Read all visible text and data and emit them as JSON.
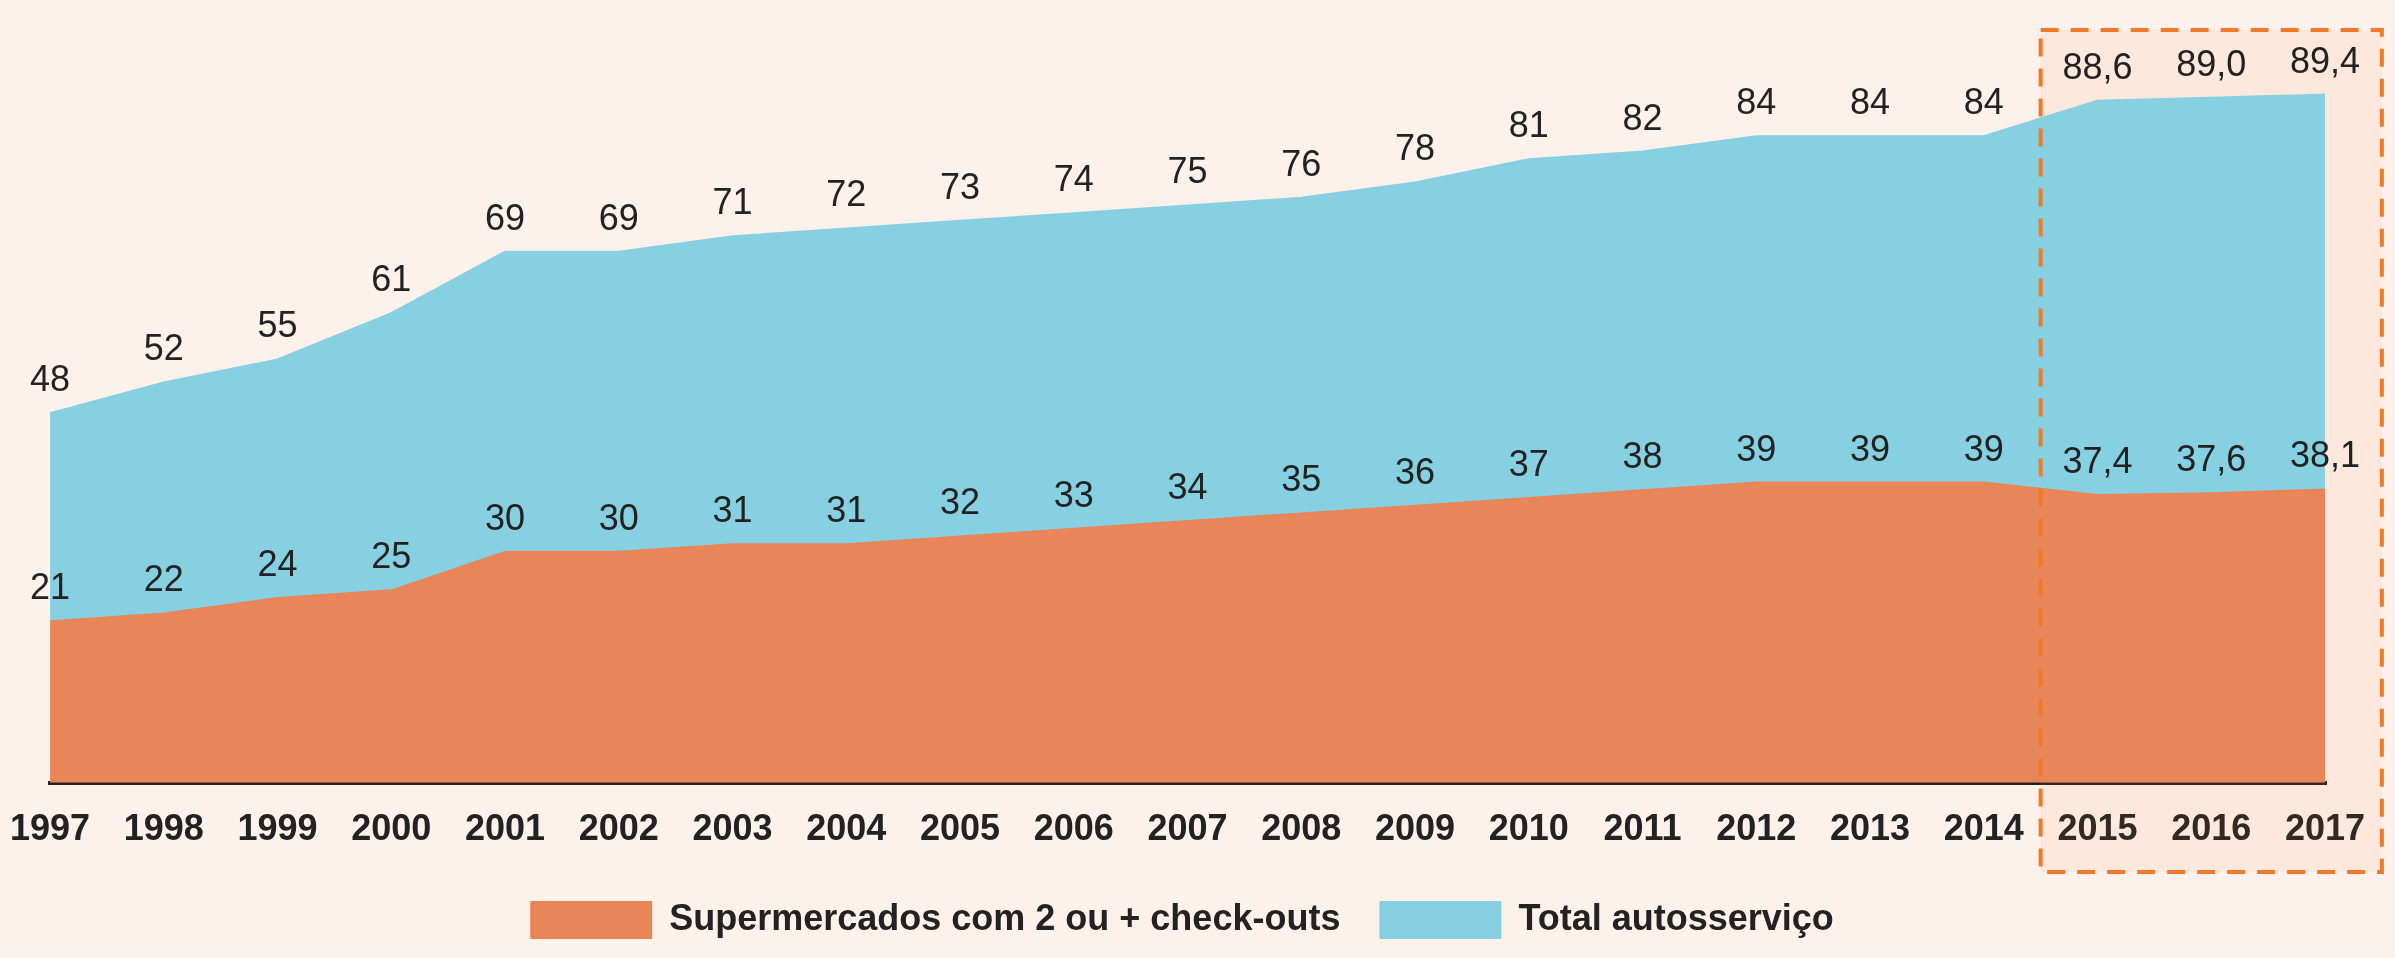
{
  "chart_data": {
    "type": "area",
    "categories": [
      "1997",
      "1998",
      "1999",
      "2000",
      "2001",
      "2002",
      "2003",
      "2004",
      "2005",
      "2006",
      "2007",
      "2008",
      "2009",
      "2010",
      "2011",
      "2012",
      "2013",
      "2014",
      "2015",
      "2016",
      "2017"
    ],
    "series": [
      {
        "name": "Supermercados com 2 ou + check-outs",
        "color": "#e8865a",
        "values": [
          21,
          22,
          24,
          25,
          30,
          30,
          31,
          31,
          32,
          33,
          34,
          35,
          36,
          37,
          38,
          39,
          39,
          39,
          37.4,
          37.6,
          38.1
        ],
        "value_labels": [
          "21",
          "22",
          "24",
          "25",
          "30",
          "30",
          "31",
          "31",
          "32",
          "33",
          "34",
          "35",
          "36",
          "37",
          "38",
          "39",
          "39",
          "39",
          "37,4",
          "37,6",
          "38,1"
        ]
      },
      {
        "name": "Total autosserviço",
        "color": "#86d0e2",
        "values": [
          48,
          52,
          55,
          61,
          69,
          69,
          71,
          72,
          73,
          74,
          75,
          76,
          78,
          81,
          82,
          84,
          84,
          84,
          88.6,
          89.0,
          89.4
        ],
        "value_labels": [
          "48",
          "52",
          "55",
          "61",
          "69",
          "69",
          "71",
          "72",
          "73",
          "74",
          "75",
          "76",
          "78",
          "81",
          "82",
          "84",
          "84",
          "84",
          "88,6",
          "89,0",
          "89,4"
        ]
      }
    ],
    "bands": [
      {
        "axis": "x",
        "from": "2015",
        "to": "2017",
        "color": "#f07a2a"
      }
    ],
    "legend": "bottom",
    "grid": false,
    "marker": "none"
  }
}
